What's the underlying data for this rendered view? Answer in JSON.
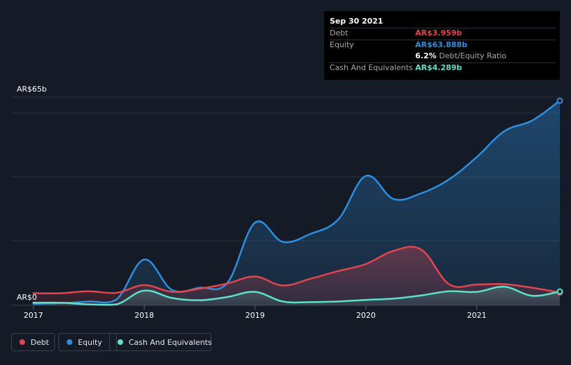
{
  "colors": {
    "debt": "#e2454f",
    "equity": "#2e8fe0",
    "cash": "#5fe0c8",
    "grid": "#2a303a",
    "background": "#151b26"
  },
  "tooltip": {
    "date": "Sep 30 2021",
    "debt_label": "Debt",
    "debt_value": "AR$3.959b",
    "equity_label": "Equity",
    "equity_value": "AR$63.888b",
    "ratio_value": "6.2%",
    "ratio_label": "Debt/Equity Ratio",
    "cash_label": "Cash And Equivalents",
    "cash_value": "AR$4.289b"
  },
  "legend": {
    "debt": "Debt",
    "equity": "Equity",
    "cash": "Cash And Equivalents"
  },
  "chart_data": {
    "type": "area",
    "y_axis_labels": [
      "AR$65b",
      "AR$0"
    ],
    "ylim": [
      0,
      65
    ],
    "x_tick_labels": [
      "2017",
      "2018",
      "2019",
      "2020",
      "2021"
    ],
    "xlim": [
      2017.0,
      2021.75
    ],
    "grid": true,
    "legend_position": "bottom-left",
    "series": [
      {
        "name": "Debt",
        "color_key": "debt",
        "x": [
          2017.0,
          2017.25,
          2017.5,
          2017.75,
          2018.0,
          2018.25,
          2018.5,
          2018.75,
          2019.0,
          2019.25,
          2019.5,
          2019.75,
          2020.0,
          2020.25,
          2020.5,
          2020.75,
          2021.0,
          2021.25,
          2021.5,
          2021.75
        ],
        "y": [
          3.8,
          3.8,
          4.4,
          3.9,
          6.3,
          4.2,
          5.2,
          6.8,
          9.0,
          6.2,
          8.3,
          10.7,
          12.9,
          17.0,
          17.4,
          6.6,
          6.5,
          6.6,
          5.5,
          4.0
        ]
      },
      {
        "name": "Equity",
        "color_key": "equity",
        "x": [
          2017.0,
          2017.25,
          2017.5,
          2017.75,
          2018.0,
          2018.25,
          2018.5,
          2018.75,
          2019.0,
          2019.25,
          2019.5,
          2019.75,
          2020.0,
          2020.25,
          2020.5,
          2020.75,
          2021.0,
          2021.25,
          2021.5,
          2021.75
        ],
        "y": [
          0.5,
          0.7,
          1.2,
          1.8,
          14.3,
          4.8,
          5.5,
          7.0,
          25.8,
          19.8,
          22.3,
          26.8,
          40.4,
          33.2,
          35.0,
          39.3,
          46.3,
          54.4,
          57.7,
          63.9
        ]
      },
      {
        "name": "Cash And Equivalents",
        "color_key": "cash",
        "x": [
          2017.0,
          2017.25,
          2017.5,
          2017.75,
          2018.0,
          2018.25,
          2018.5,
          2018.75,
          2019.0,
          2019.25,
          2019.5,
          2019.75,
          2020.0,
          2020.25,
          2020.5,
          2020.75,
          2021.0,
          2021.25,
          2021.5,
          2021.75
        ],
        "y": [
          0.8,
          0.8,
          0.3,
          0.3,
          4.6,
          2.3,
          1.6,
          2.6,
          4.2,
          1.2,
          1.0,
          1.2,
          1.7,
          2.1,
          3.1,
          4.4,
          4.2,
          5.8,
          3.0,
          4.3
        ]
      }
    ]
  }
}
